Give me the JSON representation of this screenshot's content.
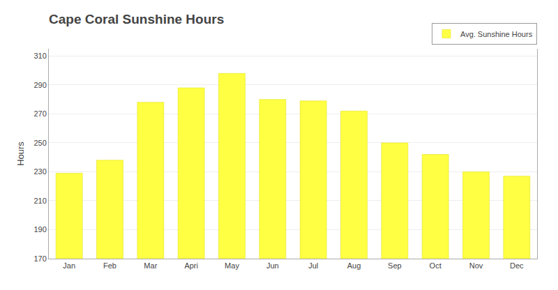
{
  "chart_data": {
    "type": "bar",
    "title": "Cape Coral Sunshine Hours",
    "ylabel": "Hours",
    "categories": [
      "Jan",
      "Feb",
      "Mar",
      "Apri",
      "May",
      "Jun",
      "Jul",
      "Aug",
      "Sep",
      "Oct",
      "Nov",
      "Dec"
    ],
    "series": [
      {
        "name": "Avg. Sunshine Hours",
        "color": "#FFFF44",
        "values": [
          229,
          238,
          278,
          288,
          298,
          280,
          279,
          272,
          250,
          242,
          230,
          227
        ]
      }
    ],
    "ylim": [
      170,
      315
    ],
    "yticks": [
      170,
      190,
      210,
      230,
      250,
      270,
      290,
      310
    ],
    "grid": true,
    "legend": "upper right"
  }
}
